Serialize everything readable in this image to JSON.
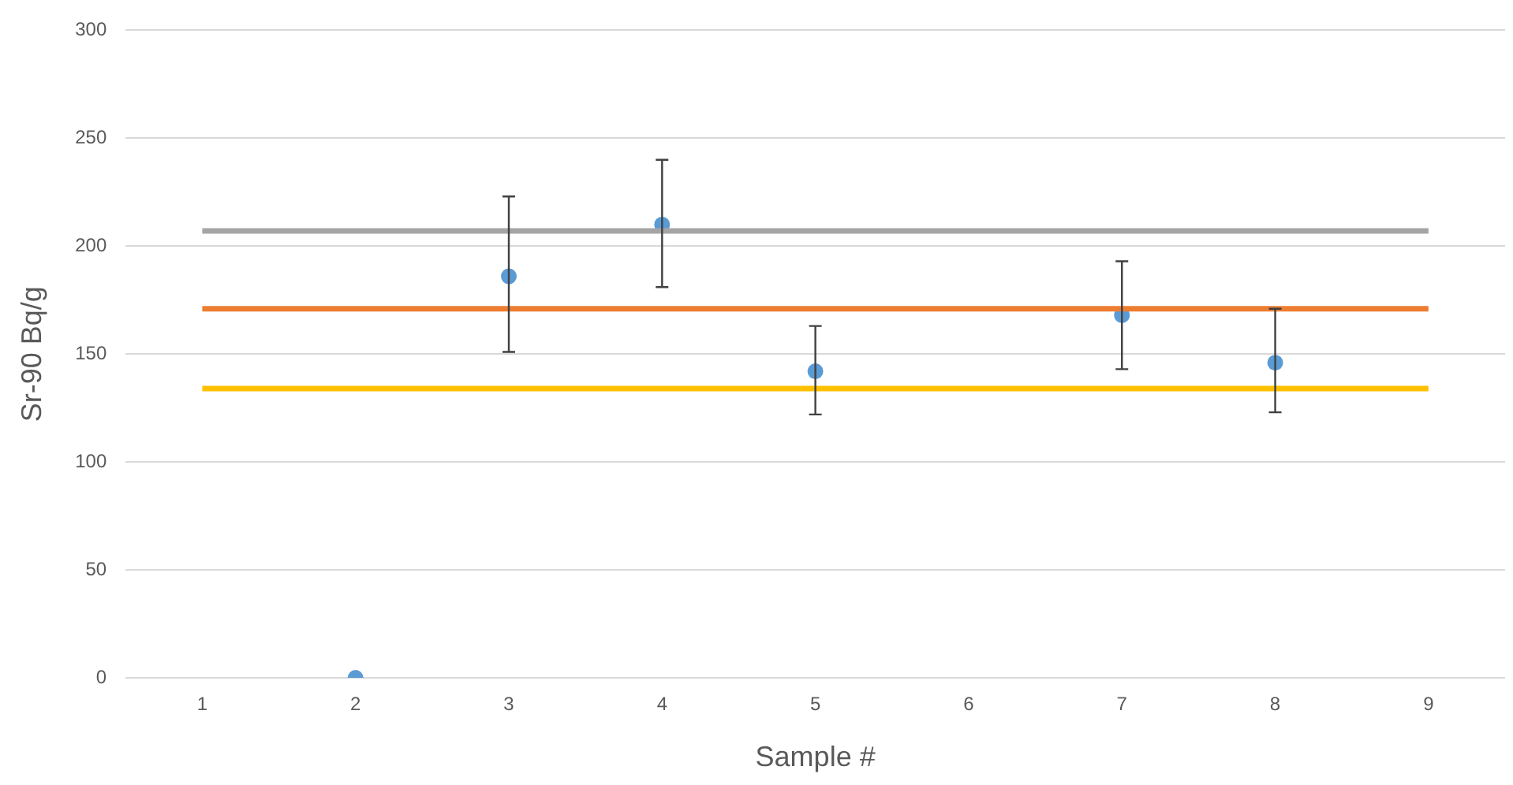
{
  "chart_data": {
    "type": "line",
    "xlabel": "Sample #",
    "ylabel": "Sr-90 Bq/g",
    "categories": [
      "1",
      "2",
      "3",
      "4",
      "5",
      "6",
      "7",
      "8",
      "9"
    ],
    "ylim": [
      0,
      300
    ],
    "yticks": [
      0,
      50,
      100,
      150,
      200,
      250,
      300
    ],
    "grid": "y",
    "legend": false,
    "series": [
      {
        "type": "line",
        "color": "#a5a5a5",
        "values": [
          207,
          207,
          207,
          207,
          207,
          207,
          207,
          207,
          207
        ],
        "marker": "none"
      },
      {
        "type": "line",
        "color": "#ed7d31",
        "values": [
          171,
          171,
          171,
          171,
          171,
          171,
          171,
          171,
          171
        ],
        "marker": "none"
      },
      {
        "type": "line",
        "color": "#ffc000",
        "values": [
          134,
          134,
          134,
          134,
          134,
          134,
          134,
          134,
          134
        ],
        "marker": "none"
      },
      {
        "type": "scatter",
        "color": "#5b9bd5",
        "marker": "circle",
        "values": [
          null,
          0,
          186,
          210,
          142,
          null,
          168,
          146,
          null
        ],
        "errors": [
          null,
          null,
          [
            151,
            223
          ],
          [
            181,
            240
          ],
          [
            122,
            163
          ],
          null,
          [
            143,
            193
          ],
          [
            123,
            171
          ],
          null
        ]
      }
    ]
  }
}
